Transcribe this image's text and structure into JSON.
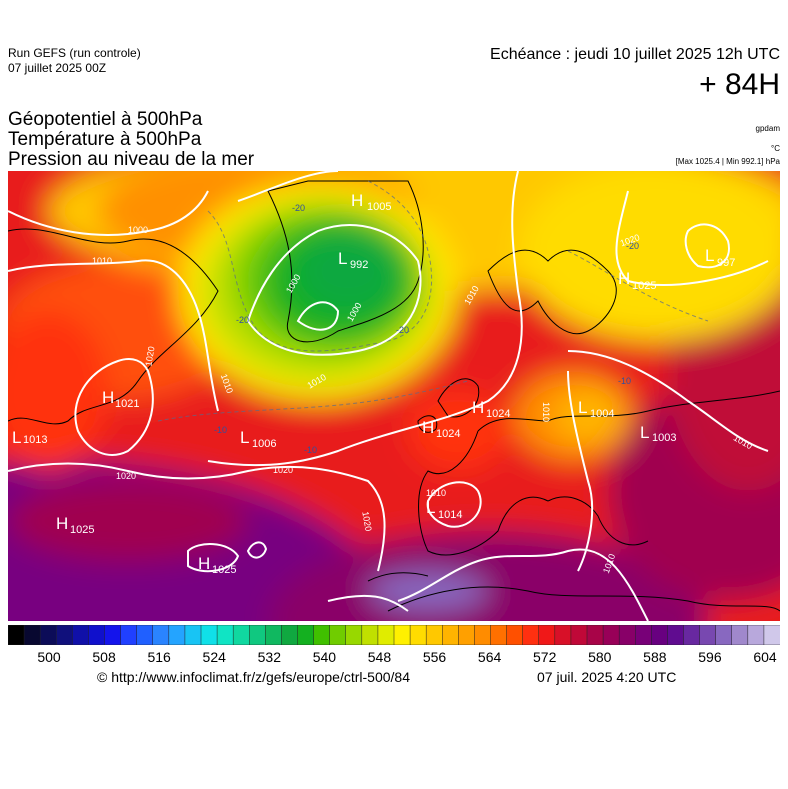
{
  "header": {
    "run_name": "Run GEFS (run controle)",
    "run_date": "07 juillet 2025 00Z",
    "valid_time": "Echéance : jeudi 10 juillet 2025 12h UTC",
    "lead_time": "+ 84H"
  },
  "layers": [
    "Géopotentiel à 500hPa",
    "Température à 500hPa",
    "Pression au niveau de la mer"
  ],
  "units": {
    "geopotential": "gpdam",
    "temperature": "°C",
    "pressure": "[Max 1025.4 | Min 992.1] hPa"
  },
  "map": {
    "temp_labels": [
      "-20",
      "-20",
      "-20",
      "-20",
      "-10",
      "-10",
      "-10"
    ],
    "contour_labels": [
      "1000",
      "1010",
      "1010",
      "1020",
      "1010",
      "1000",
      "1000",
      "1010",
      "1010",
      "1020",
      "1020",
      "1020",
      "1020",
      "1010",
      "1010",
      "1010"
    ],
    "pressure_centers": [
      {
        "letter": "H",
        "value": "1005"
      },
      {
        "letter": "L",
        "value": "992"
      },
      {
        "letter": "L",
        "value": "997"
      },
      {
        "letter": "H",
        "value": "1025"
      },
      {
        "letter": "H",
        "value": "1021"
      },
      {
        "letter": "L",
        "value": "1013"
      },
      {
        "letter": "L",
        "value": "1006"
      },
      {
        "letter": "H",
        "value": "1024"
      },
      {
        "letter": "H",
        "value": "1024"
      },
      {
        "letter": "L",
        "value": "1004"
      },
      {
        "letter": "L",
        "value": "1003"
      },
      {
        "letter": "L",
        "value": "1014"
      },
      {
        "letter": "H",
        "value": "1025"
      },
      {
        "letter": "H",
        "value": "1025"
      }
    ]
  },
  "colorbar": {
    "tick_labels": [
      "500",
      "508",
      "516",
      "524",
      "532",
      "540",
      "548",
      "556",
      "564",
      "572",
      "580",
      "588",
      "596",
      "604"
    ],
    "colors": [
      "#000000",
      "#080830",
      "#0c0c58",
      "#10107c",
      "#1010a8",
      "#1010cc",
      "#1414ec",
      "#2040ff",
      "#2060ff",
      "#2a84ff",
      "#24a4ff",
      "#18c4f4",
      "#10e0e8",
      "#10e4c4",
      "#10d8a0",
      "#10c880",
      "#10b860",
      "#10a840",
      "#14b020",
      "#40c000",
      "#70cc00",
      "#98d800",
      "#c0e000",
      "#e0ec00",
      "#fff000",
      "#ffdc00",
      "#ffc800",
      "#ffb400",
      "#ffa000",
      "#ff8c00",
      "#ff7000",
      "#ff5000",
      "#ff3010",
      "#f01818",
      "#d81028",
      "#c00838",
      "#a80448",
      "#980058",
      "#880068",
      "#780078",
      "#680080",
      "#600c90",
      "#6828a0",
      "#7848b0",
      "#8868c0",
      "#a088cc",
      "#b8a8dc",
      "#d0c8ea"
    ]
  },
  "footer": {
    "credit": "© http://www.infoclimat.fr/z/gefs/europe/ctrl-500/84",
    "timestamp": "07 juil. 2025  4:20 UTC"
  }
}
